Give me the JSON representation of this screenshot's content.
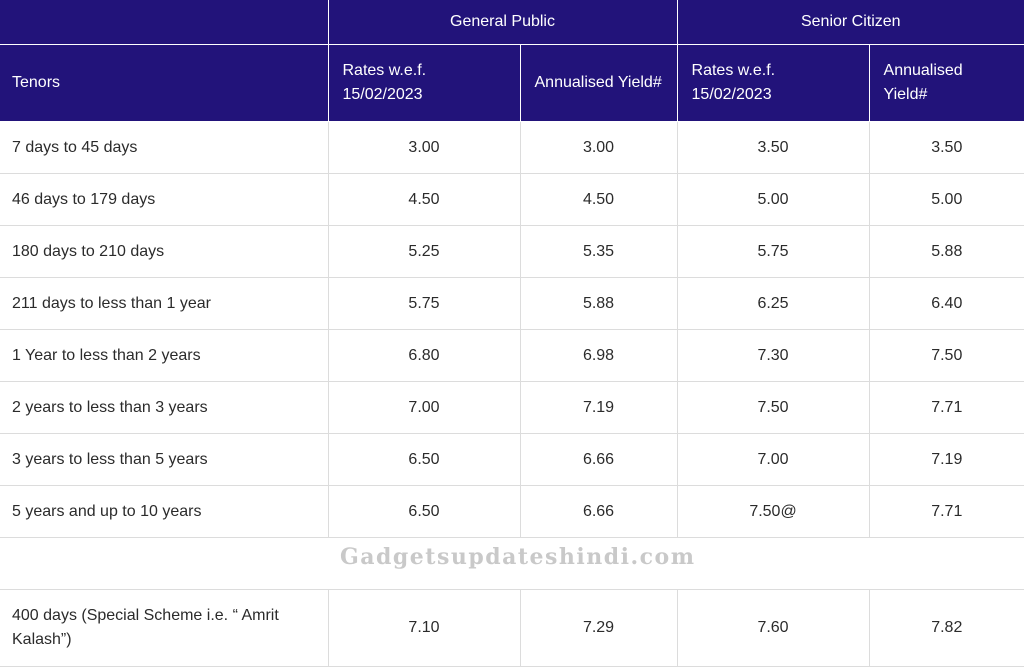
{
  "header": {
    "group1": "General Public",
    "group2": "Senior Citizen",
    "tenors": "Tenors",
    "rates_label": "Rates w.e.f. 15/02/2023",
    "yield_label": "Annualised Yield#"
  },
  "rows": [
    {
      "tenor": "7 days to 45 days",
      "gp_rate": "3.00",
      "gp_yield": "3.00",
      "sc_rate": "3.50",
      "sc_yield": "3.50"
    },
    {
      "tenor": "46 days to 179 days",
      "gp_rate": "4.50",
      "gp_yield": "4.50",
      "sc_rate": "5.00",
      "sc_yield": "5.00"
    },
    {
      "tenor": "180 days to 210 days",
      "gp_rate": "5.25",
      "gp_yield": "5.35",
      "sc_rate": "5.75",
      "sc_yield": "5.88"
    },
    {
      "tenor": "211 days to less than 1 year",
      "gp_rate": "5.75",
      "gp_yield": "5.88",
      "sc_rate": "6.25",
      "sc_yield": "6.40"
    },
    {
      "tenor": "1 Year to less than 2 years",
      "gp_rate": "6.80",
      "gp_yield": "6.98",
      "sc_rate": "7.30",
      "sc_yield": "7.50"
    },
    {
      "tenor": "2 years to less than 3 years",
      "gp_rate": "7.00",
      "gp_yield": "7.19",
      "sc_rate": "7.50",
      "sc_yield": "7.71"
    },
    {
      "tenor": "3 years to less than 5 years",
      "gp_rate": "6.50",
      "gp_yield": "6.66",
      "sc_rate": "7.00",
      "sc_yield": "7.19"
    },
    {
      "tenor": "5 years and up to 10 years",
      "gp_rate": "6.50",
      "gp_yield": "6.66",
      "sc_rate": "7.50@",
      "sc_yield": "7.71"
    }
  ],
  "watermark": "Gadgetsupdateshindi.com",
  "special": {
    "tenor": "400 days (Special Scheme i.e. “ Amrit Kalash”)",
    "gp_rate": "7.10",
    "gp_yield": "7.29",
    "sc_rate": "7.60",
    "sc_yield": "7.82"
  },
  "colors": {
    "header_bg": "#22137a",
    "header_text": "#ffffff",
    "border": "#dcdcdc",
    "watermark": "#c9c9c9"
  }
}
